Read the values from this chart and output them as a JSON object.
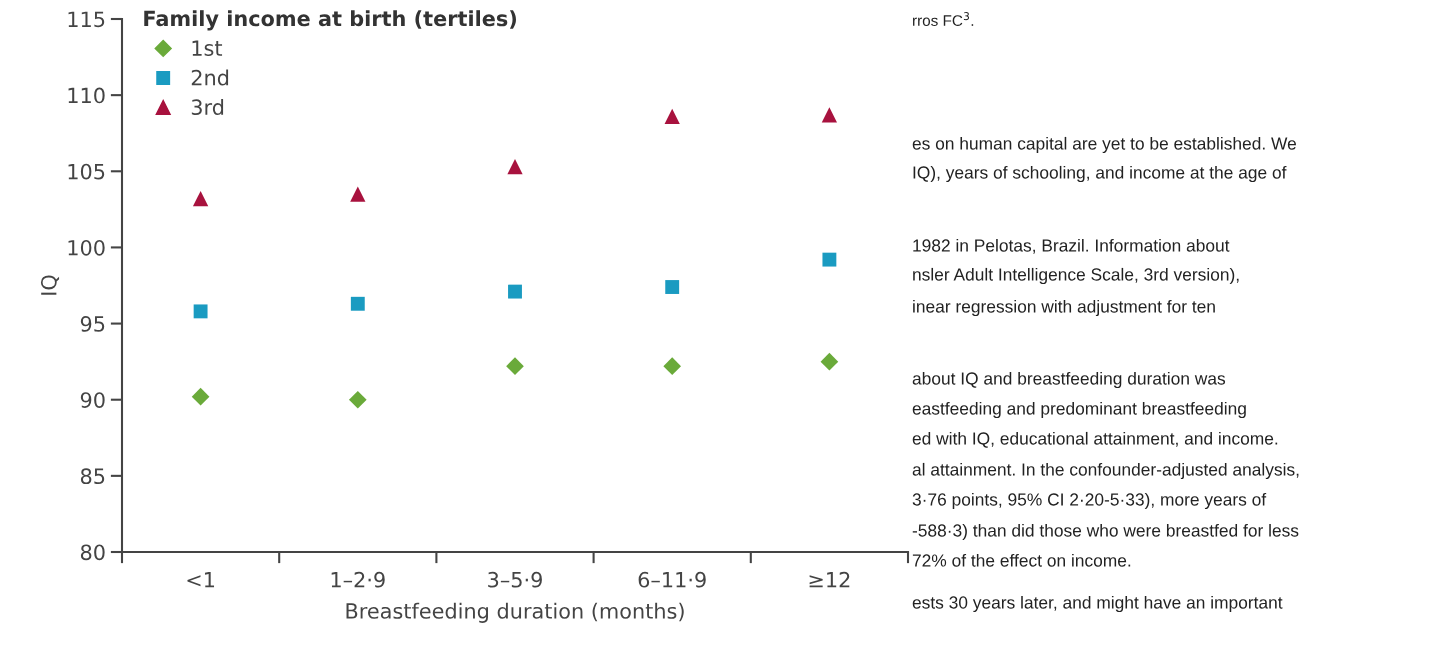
{
  "chart_data": {
    "type": "scatter",
    "xlabel": "Breastfeeding duration (months)",
    "ylabel": "IQ",
    "legend_title": "Family income at birth (tertiles)",
    "legend": "top left",
    "grid": false,
    "categories": [
      "<1",
      "1–2·9",
      "3–5·9",
      "6–11·9",
      "≥12"
    ],
    "ylim": [
      80,
      115
    ],
    "yticks": [
      80,
      85,
      90,
      95,
      100,
      105,
      110,
      115
    ],
    "series": [
      {
        "name": "1st",
        "color": "#6aaa3a",
        "marker": "diamond",
        "values": [
          90.2,
          90.0,
          92.2,
          92.2,
          92.5
        ]
      },
      {
        "name": "2nd",
        "color": "#1a9bc1",
        "marker": "square",
        "values": [
          95.8,
          96.3,
          97.1,
          97.4,
          99.2
        ]
      },
      {
        "name": "3rd",
        "color": "#a8123e",
        "marker": "triangle",
        "values": [
          103.2,
          103.5,
          105.3,
          108.6,
          108.7
        ]
      }
    ],
    "annotations": [
      "rros FC$^{3}$.",
      "es on human capital are yet to be established. We",
      "IQ), years of schooling, and income at the age of",
      "1982 in Pelotas, Brazil. Information about",
      "nsler Adult Intelligence Scale, 3rd version),",
      "inear regression with adjustment for ten",
      "about IQ and breastfeeding duration was",
      "eastfeeding and predominant breastfeeding",
      "ed with IQ, educational attainment, and income.",
      "al attainment. In the confounder-adjusted analysis,",
      "3·76 points, 95% CI 2·20-5·33), more years of",
      "-588·3) than did those who were breastfed for less",
      "72% of the effect on income.",
      "ests 30 years later, and might have an important"
    ]
  }
}
